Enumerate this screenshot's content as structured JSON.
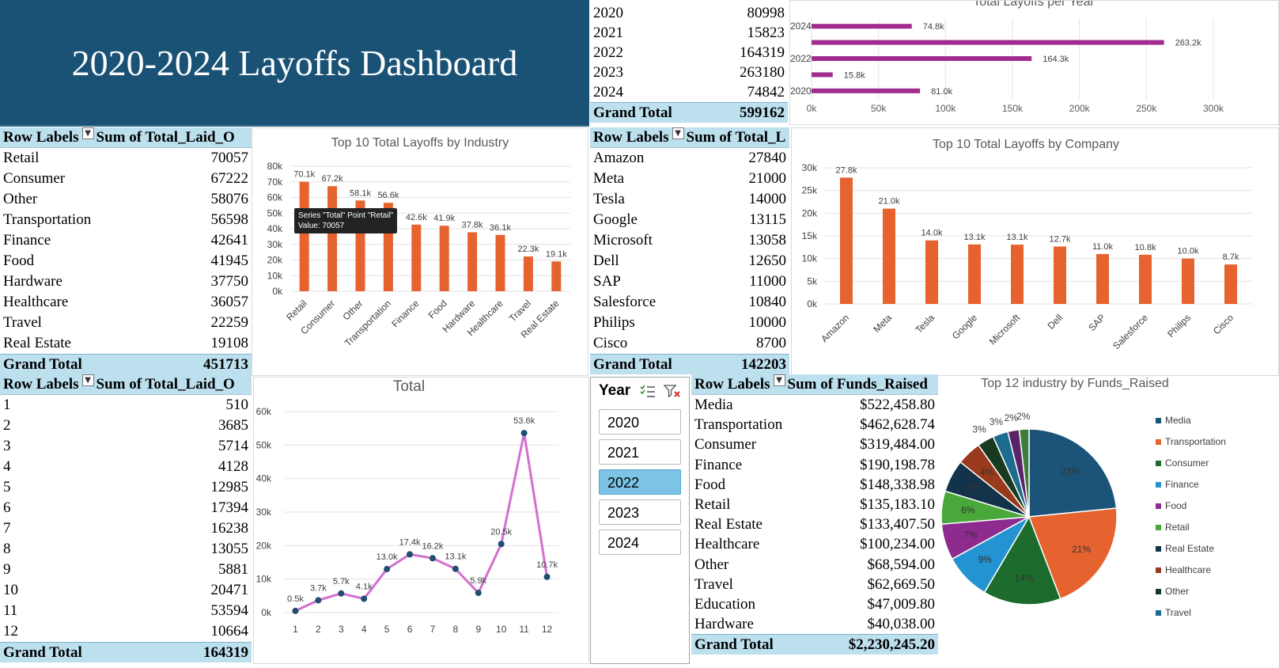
{
  "banner": {
    "title": "2020-2024 Layoffs Dashboard"
  },
  "pivot_year": {
    "rows": [
      {
        "label": "2020",
        "value": "80998"
      },
      {
        "label": "2021",
        "value": "15823"
      },
      {
        "label": "2022",
        "value": "164319"
      },
      {
        "label": "2023",
        "value": "263180"
      },
      {
        "label": "2024",
        "value": "74842"
      }
    ],
    "total_label": "Grand Total",
    "total_value": "599162"
  },
  "pivot_industry": {
    "header_rows": "Row Labels",
    "header_sum": "Sum of Total_Laid_O",
    "rows": [
      {
        "label": "Retail",
        "value": "70057"
      },
      {
        "label": "Consumer",
        "value": "67222"
      },
      {
        "label": "Other",
        "value": "58076"
      },
      {
        "label": "Transportation",
        "value": "56598"
      },
      {
        "label": "Finance",
        "value": "42641"
      },
      {
        "label": "Food",
        "value": "41945"
      },
      {
        "label": "Hardware",
        "value": "37750"
      },
      {
        "label": "Healthcare",
        "value": "36057"
      },
      {
        "label": "Travel",
        "value": "22259"
      },
      {
        "label": "Real Estate",
        "value": "19108"
      }
    ],
    "total_label": "Grand Total",
    "total_value": "451713"
  },
  "pivot_company": {
    "header_rows": "Row Labels",
    "header_sum": "Sum of Total_L",
    "rows": [
      {
        "label": "Amazon",
        "value": "27840"
      },
      {
        "label": "Meta",
        "value": "21000"
      },
      {
        "label": "Tesla",
        "value": "14000"
      },
      {
        "label": "Google",
        "value": "13115"
      },
      {
        "label": "Microsoft",
        "value": "13058"
      },
      {
        "label": "Dell",
        "value": "12650"
      },
      {
        "label": "SAP",
        "value": "11000"
      },
      {
        "label": "Salesforce",
        "value": "10840"
      },
      {
        "label": "Philips",
        "value": "10000"
      },
      {
        "label": "Cisco",
        "value": "8700"
      }
    ],
    "total_label": "Grand Total",
    "total_value": "142203"
  },
  "pivot_month": {
    "header_rows": "Row Labels",
    "header_sum": "Sum of Total_Laid_O",
    "rows": [
      {
        "label": "1",
        "value": "510"
      },
      {
        "label": "2",
        "value": "3685"
      },
      {
        "label": "3",
        "value": "5714"
      },
      {
        "label": "4",
        "value": "4128"
      },
      {
        "label": "5",
        "value": "12985"
      },
      {
        "label": "6",
        "value": "17394"
      },
      {
        "label": "7",
        "value": "16238"
      },
      {
        "label": "8",
        "value": "13055"
      },
      {
        "label": "9",
        "value": "5881"
      },
      {
        "label": "10",
        "value": "20471"
      },
      {
        "label": "11",
        "value": "53594"
      },
      {
        "label": "12",
        "value": "10664"
      }
    ],
    "total_label": "Grand Total",
    "total_value": "164319"
  },
  "pivot_funds": {
    "header_rows": "Row Labels",
    "header_sum": "Sum of Funds_Raised",
    "rows": [
      {
        "label": "Media",
        "value": "$522,458.80"
      },
      {
        "label": "Transportation",
        "value": "$462,628.74"
      },
      {
        "label": "Consumer",
        "value": "$319,484.00"
      },
      {
        "label": "Finance",
        "value": "$190,198.78"
      },
      {
        "label": "Food",
        "value": "$148,338.98"
      },
      {
        "label": "Retail",
        "value": "$135,183.10"
      },
      {
        "label": "Real Estate",
        "value": "$133,407.50"
      },
      {
        "label": "Healthcare",
        "value": "$100,234.00"
      },
      {
        "label": "Other",
        "value": "$68,594.00"
      },
      {
        "label": "Travel",
        "value": "$62,669.50"
      },
      {
        "label": "Education",
        "value": "$47,009.80"
      },
      {
        "label": "Hardware",
        "value": "$40,038.00"
      }
    ],
    "total_label": "Grand Total",
    "total_value": "$2,230,245.20"
  },
  "slicer": {
    "title": "Year",
    "items": [
      "2020",
      "2021",
      "2022",
      "2023",
      "2024"
    ],
    "selected": "2022"
  },
  "tooltip": {
    "line1": "Series \"Total\" Point \"Retail\"",
    "line2": "Value: 70057"
  },
  "colors": {
    "bar": "#e6632f",
    "year_bar": "#a12b8f",
    "line": "#d36fce",
    "marker": "#1f4e6f",
    "banner": "#1a5276",
    "header": "#bde0ef"
  },
  "chart_data": [
    {
      "type": "bar",
      "title": "Total Layoffs per Year",
      "orientation": "horizontal",
      "categories": [
        "2020",
        "2021",
        "2022",
        "2023",
        "2024"
      ],
      "values": [
        80998,
        15823,
        164319,
        263180,
        74842
      ],
      "data_labels": [
        "81.0k",
        "15.8k",
        "164.3k",
        "263.2k",
        "74.8k"
      ],
      "xlim": [
        0,
        300000
      ],
      "x_ticks": [
        "0k",
        "50k",
        "100k",
        "150k",
        "200k",
        "250k",
        "300k"
      ]
    },
    {
      "type": "bar",
      "title": "Top 10 Total Layoffs by Industry",
      "categories": [
        "Retail",
        "Consumer",
        "Other",
        "Transportation",
        "Finance",
        "Food",
        "Hardware",
        "Healthcare",
        "Travel",
        "Real Estate"
      ],
      "values": [
        70057,
        67222,
        58076,
        56598,
        42641,
        41945,
        37750,
        36057,
        22259,
        19108
      ],
      "data_labels": [
        "70.1k",
        "67.2k",
        "58.1k",
        "56.6k",
        "42.6k",
        "41.9k",
        "37.8k",
        "36.1k",
        "22.3k",
        "19.1k"
      ],
      "ylim": [
        0,
        80000
      ],
      "y_ticks": [
        "0k",
        "10k",
        "20k",
        "30k",
        "40k",
        "50k",
        "60k",
        "70k",
        "80k"
      ]
    },
    {
      "type": "bar",
      "title": "Top 10 Total Layoffs by Company",
      "categories": [
        "Amazon",
        "Meta",
        "Tesla",
        "Google",
        "Microsoft",
        "Dell",
        "SAP",
        "Salesforce",
        "Philips",
        "Cisco"
      ],
      "values": [
        27840,
        21000,
        14000,
        13115,
        13058,
        12650,
        11000,
        10840,
        10000,
        8700
      ],
      "data_labels": [
        "27.8k",
        "21.0k",
        "14.0k",
        "13.1k",
        "13.1k",
        "12.7k",
        "11.0k",
        "10.8k",
        "10.0k",
        "8.7k"
      ],
      "ylim": [
        0,
        30000
      ],
      "y_ticks": [
        "0k",
        "5k",
        "10k",
        "15k",
        "20k",
        "25k",
        "30k"
      ]
    },
    {
      "type": "line",
      "title": "Total",
      "categories": [
        "1",
        "2",
        "3",
        "4",
        "5",
        "6",
        "7",
        "8",
        "9",
        "10",
        "11",
        "12"
      ],
      "values": [
        510,
        3685,
        5714,
        4128,
        12985,
        17394,
        16238,
        13055,
        5881,
        20471,
        53594,
        10664
      ],
      "data_labels": [
        "0.5k",
        "3.7k",
        "5.7k",
        "4.1k",
        "13.0k",
        "17.4k",
        "16.2k",
        "13.1k",
        "5.9k",
        "20.5k",
        "53.6k",
        "10.7k"
      ],
      "ylim": [
        0,
        60000
      ],
      "y_ticks": [
        "0k",
        "10k",
        "20k",
        "30k",
        "40k",
        "50k",
        "60k"
      ]
    },
    {
      "type": "pie",
      "title": "Top 12 industry by Funds_Raised",
      "categories": [
        "Media",
        "Transportation",
        "Consumer",
        "Finance",
        "Food",
        "Retail",
        "Real Estate",
        "Healthcare",
        "Other",
        "Travel",
        "Education",
        "Hardware"
      ],
      "values": [
        522458.8,
        462628.74,
        319484.0,
        190198.78,
        148338.98,
        135183.1,
        133407.5,
        100234.0,
        68594.0,
        62669.5,
        47009.8,
        40038.0
      ],
      "data_labels": [
        "23%",
        "21%",
        "14%",
        "9%",
        "7%",
        "6%",
        "6%",
        "4%",
        "3%",
        "3%",
        "2%",
        "2%"
      ],
      "legend_entries": [
        "Media",
        "Transportation",
        "Consumer",
        "Finance",
        "Food",
        "Retail",
        "Real Estate",
        "Healthcare",
        "Other",
        "Travel"
      ],
      "colors": [
        "#1b5478",
        "#e6632f",
        "#1d6b2d",
        "#2493d1",
        "#8e2b8f",
        "#4aa83b",
        "#13334a",
        "#9a3a1c",
        "#173a20",
        "#1d6b8f",
        "#5a2468",
        "#3f7d3a"
      ],
      "legend": "right"
    }
  ]
}
